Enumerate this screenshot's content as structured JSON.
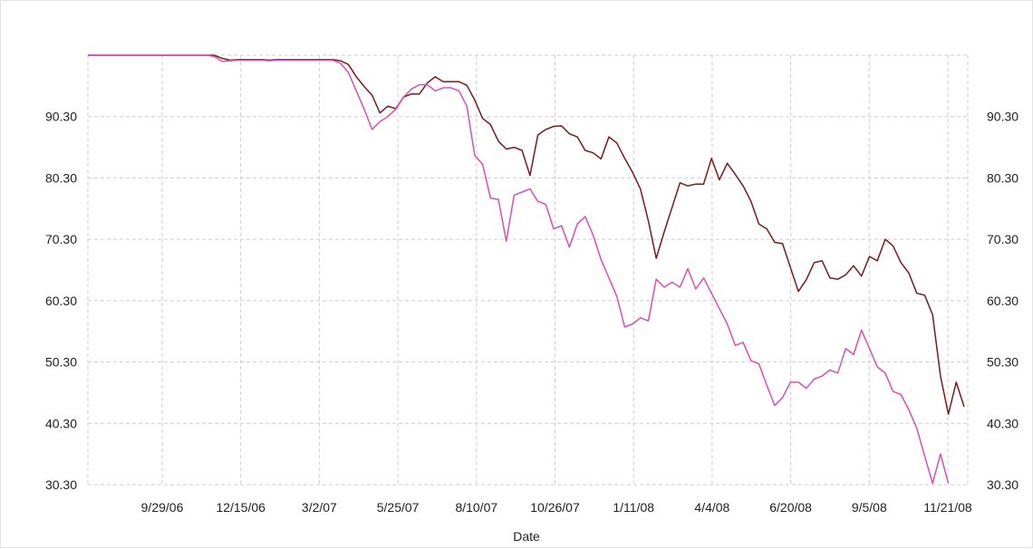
{
  "chart_data": {
    "type": "line",
    "xlabel": "Date",
    "ylabel": "",
    "title": "",
    "ylim": [
      30.3,
      100.3
    ],
    "y_ticks": [
      30.3,
      40.3,
      50.3,
      60.3,
      70.3,
      80.3,
      90.3
    ],
    "y_tick_labels": [
      "30.30",
      "40.30",
      "50.30",
      "60.30",
      "70.30",
      "80.30",
      "90.30"
    ],
    "y_axes": [
      "left",
      "right"
    ],
    "x_tick_labels": [
      "9/29/06",
      "12/15/06",
      "3/2/07",
      "5/25/07",
      "8/10/07",
      "10/26/07",
      "1/11/08",
      "4/4/08",
      "6/20/08",
      "9/5/08",
      "11/21/08"
    ],
    "grid": true,
    "legend": "none",
    "series": [
      {
        "color": "#7a1a1a",
        "values": [
          100.3,
          100.3,
          100.3,
          100.3,
          100.3,
          100.3,
          100.3,
          100.3,
          100.3,
          100.3,
          100.3,
          100.3,
          100.3,
          100.3,
          100.3,
          100.3,
          100.3,
          99.8,
          99.5,
          99.6,
          99.6,
          99.6,
          99.6,
          99.5,
          99.6,
          99.6,
          99.6,
          99.6,
          99.6,
          99.6,
          99.6,
          99.6,
          99.4,
          98.8,
          96.8,
          95.2,
          93.8,
          90.9,
          92.0,
          91.6,
          93.5,
          94.0,
          94.0,
          95.8,
          96.8,
          96.0,
          96.0,
          96.0,
          95.4,
          93.0,
          90.0,
          89.0,
          86.3,
          85.0,
          85.3,
          84.8,
          80.7,
          87.3,
          88.2,
          88.7,
          88.8,
          87.5,
          87.0,
          84.8,
          84.4,
          83.4,
          87.0,
          86.0,
          83.5,
          81.2,
          78.5,
          73.3,
          67.2,
          71.5,
          75.5,
          79.5,
          79.0,
          79.3,
          79.3,
          83.5,
          80.0,
          82.7,
          80.9,
          79.0,
          76.5,
          72.8,
          72.0,
          69.8,
          69.6,
          65.7,
          61.8,
          63.7,
          66.5,
          66.8,
          64.0,
          63.8,
          64.5,
          66.0,
          64.3,
          67.5,
          66.8,
          70.3,
          69.2,
          66.5,
          64.8,
          61.5,
          61.2,
          58.0,
          48.0,
          41.8,
          47.0,
          43.0
        ],
        "start": "2006-07-14",
        "end": "2008-12-12"
      },
      {
        "color": "#d94fb5",
        "values": [
          100.3,
          100.3,
          100.3,
          100.3,
          100.3,
          100.3,
          100.3,
          100.3,
          100.3,
          100.3,
          100.3,
          100.3,
          100.3,
          100.3,
          100.3,
          100.3,
          100.1,
          99.3,
          99.4,
          99.5,
          99.5,
          99.5,
          99.5,
          99.4,
          99.5,
          99.5,
          99.5,
          99.5,
          99.5,
          99.5,
          99.5,
          99.5,
          99.0,
          97.5,
          94.5,
          91.5,
          88.2,
          89.5,
          90.3,
          91.5,
          93.5,
          94.8,
          95.5,
          95.5,
          94.5,
          95.0,
          95.0,
          94.5,
          92.0,
          84.0,
          82.5,
          77.0,
          76.8,
          70.0,
          77.5,
          78.0,
          78.5,
          76.5,
          76.0,
          72.0,
          72.5,
          69.0,
          72.8,
          74.0,
          71.0,
          67.0,
          64.0,
          61.0,
          56.0,
          56.5,
          57.5,
          57.0,
          63.8,
          62.5,
          63.3,
          62.5,
          65.5,
          62.2,
          64.0,
          61.5,
          59.0,
          56.5,
          53.0,
          53.5,
          50.5,
          50.0,
          46.5,
          43.2,
          44.5,
          47.0,
          47.0,
          46.0,
          47.5,
          48.0,
          49.0,
          48.5,
          52.5,
          51.5,
          55.5,
          52.5,
          49.5,
          48.5,
          45.5,
          45.0,
          42.5,
          39.5,
          35.0,
          30.5,
          35.3,
          30.5
        ],
        "start": "2006-07-14",
        "end": "2008-12-12"
      }
    ]
  }
}
